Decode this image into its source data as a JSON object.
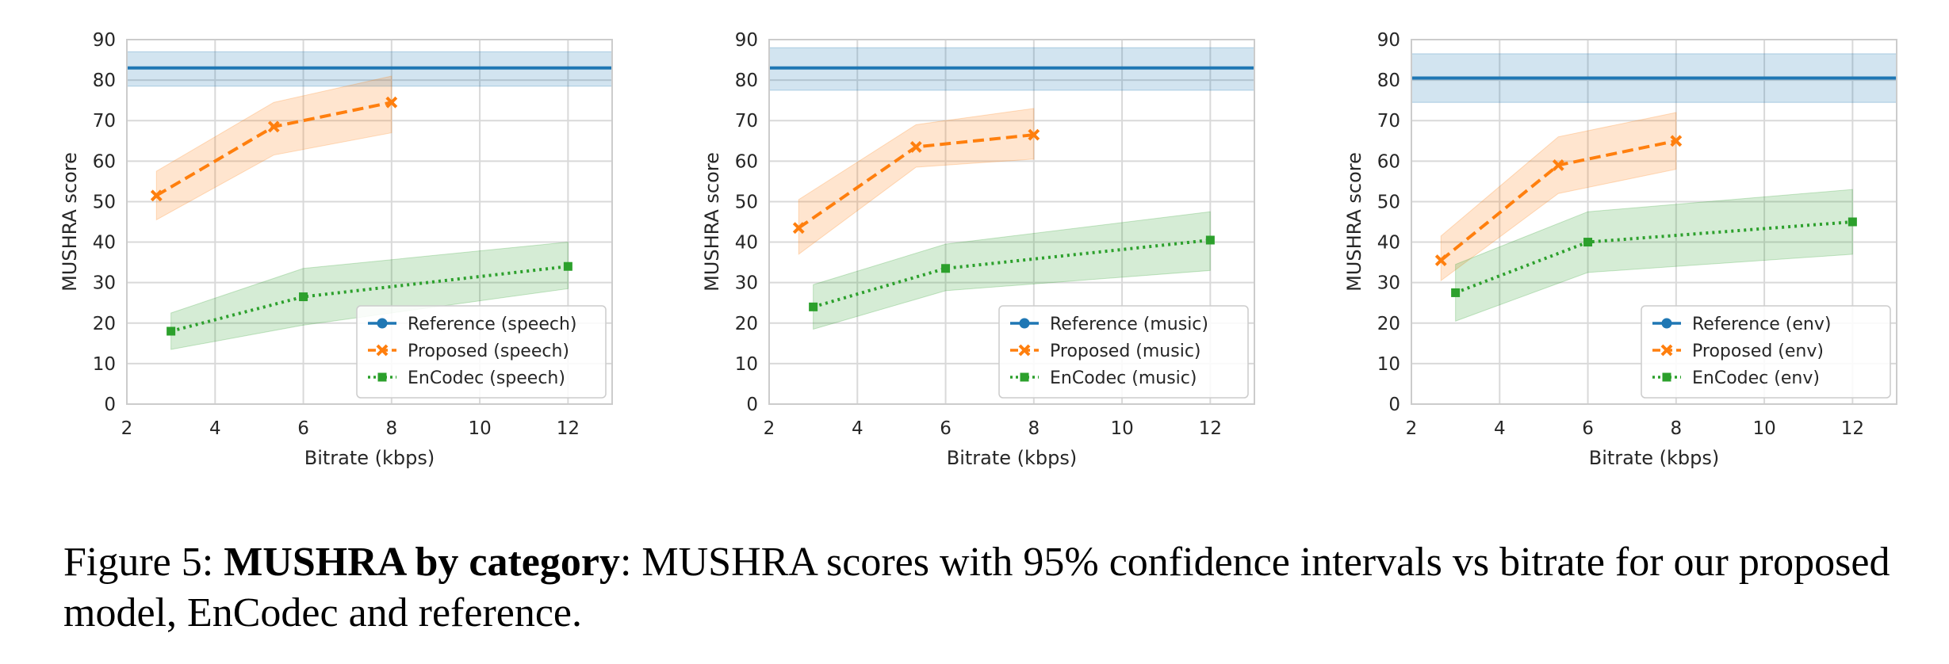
{
  "caption": {
    "label": "Figure 5:",
    "bold": "MUSHRA by category",
    "text": ": MUSHRA scores with 95% confidence intervals vs bitrate for our proposed model, EnCodec and reference."
  },
  "colors": {
    "reference": "#1f77b4",
    "proposed": "#ff7f0e",
    "encodec": "#2ca02c"
  },
  "chart_data": [
    {
      "type": "line",
      "xlabel": "Bitrate (kbps)",
      "ylabel": "MUSHRA score",
      "xlim": [
        2,
        13
      ],
      "ylim": [
        0,
        90
      ],
      "xticks": [
        "2",
        "4",
        "6",
        "8",
        "10",
        "12"
      ],
      "yticks": [
        "0",
        "10",
        "20",
        "30",
        "40",
        "50",
        "60",
        "70",
        "80",
        "90"
      ],
      "grid": true,
      "legend": "lower-right",
      "series": [
        {
          "name": "Reference (speech)",
          "style": "solid",
          "marker": "circle",
          "reference": true,
          "value": 83,
          "ci": [
            78.5,
            87
          ]
        },
        {
          "name": "Proposed (speech)",
          "style": "dashed",
          "marker": "x",
          "x": [
            2.67,
            5.33,
            8
          ],
          "y": [
            51.5,
            68.5,
            74.5
          ],
          "ci_low": [
            45.5,
            61.5,
            67
          ],
          "ci_high": [
            57.5,
            74.5,
            81
          ]
        },
        {
          "name": "EnCodec (speech)",
          "style": "dotted",
          "marker": "square",
          "x": [
            3,
            6,
            12
          ],
          "y": [
            18,
            26.5,
            34
          ],
          "ci_low": [
            13.5,
            19.5,
            28.5
          ],
          "ci_high": [
            22.5,
            33.5,
            40
          ]
        }
      ]
    },
    {
      "type": "line",
      "xlabel": "Bitrate (kbps)",
      "ylabel": "MUSHRA score",
      "xlim": [
        2,
        13
      ],
      "ylim": [
        0,
        90
      ],
      "xticks": [
        "2",
        "4",
        "6",
        "8",
        "10",
        "12"
      ],
      "yticks": [
        "0",
        "10",
        "20",
        "30",
        "40",
        "50",
        "60",
        "70",
        "80",
        "90"
      ],
      "grid": true,
      "legend": "lower-right",
      "series": [
        {
          "name": "Reference (music)",
          "style": "solid",
          "marker": "circle",
          "reference": true,
          "value": 83,
          "ci": [
            77.5,
            88
          ]
        },
        {
          "name": "Proposed (music)",
          "style": "dashed",
          "marker": "x",
          "x": [
            2.67,
            5.33,
            8
          ],
          "y": [
            43.5,
            63.5,
            66.5
          ],
          "ci_low": [
            37,
            58.5,
            60.5
          ],
          "ci_high": [
            50.5,
            69,
            73
          ]
        },
        {
          "name": "EnCodec (music)",
          "style": "dotted",
          "marker": "square",
          "x": [
            3,
            6,
            12
          ],
          "y": [
            24,
            33.5,
            40.5
          ],
          "ci_low": [
            18.5,
            28,
            33
          ],
          "ci_high": [
            29.5,
            39.5,
            47.5
          ]
        }
      ]
    },
    {
      "type": "line",
      "xlabel": "Bitrate (kbps)",
      "ylabel": "MUSHRA score",
      "xlim": [
        2,
        13
      ],
      "ylim": [
        0,
        90
      ],
      "xticks": [
        "2",
        "4",
        "6",
        "8",
        "10",
        "12"
      ],
      "yticks": [
        "0",
        "10",
        "20",
        "30",
        "40",
        "50",
        "60",
        "70",
        "80",
        "90"
      ],
      "grid": true,
      "legend": "lower-right",
      "series": [
        {
          "name": "Reference (env)",
          "style": "solid",
          "marker": "circle",
          "reference": true,
          "value": 80.5,
          "ci": [
            74.5,
            86.5
          ]
        },
        {
          "name": "Proposed (env)",
          "style": "dashed",
          "marker": "x",
          "x": [
            2.67,
            5.33,
            8
          ],
          "y": [
            35.5,
            59,
            65
          ],
          "ci_low": [
            30.5,
            52,
            58
          ],
          "ci_high": [
            41.5,
            66,
            72
          ]
        },
        {
          "name": "EnCodec (env)",
          "style": "dotted",
          "marker": "square",
          "x": [
            3,
            6,
            12
          ],
          "y": [
            27.5,
            40,
            45
          ],
          "ci_low": [
            20.5,
            32.5,
            37
          ],
          "ci_high": [
            34.5,
            47.5,
            53
          ]
        }
      ]
    }
  ]
}
